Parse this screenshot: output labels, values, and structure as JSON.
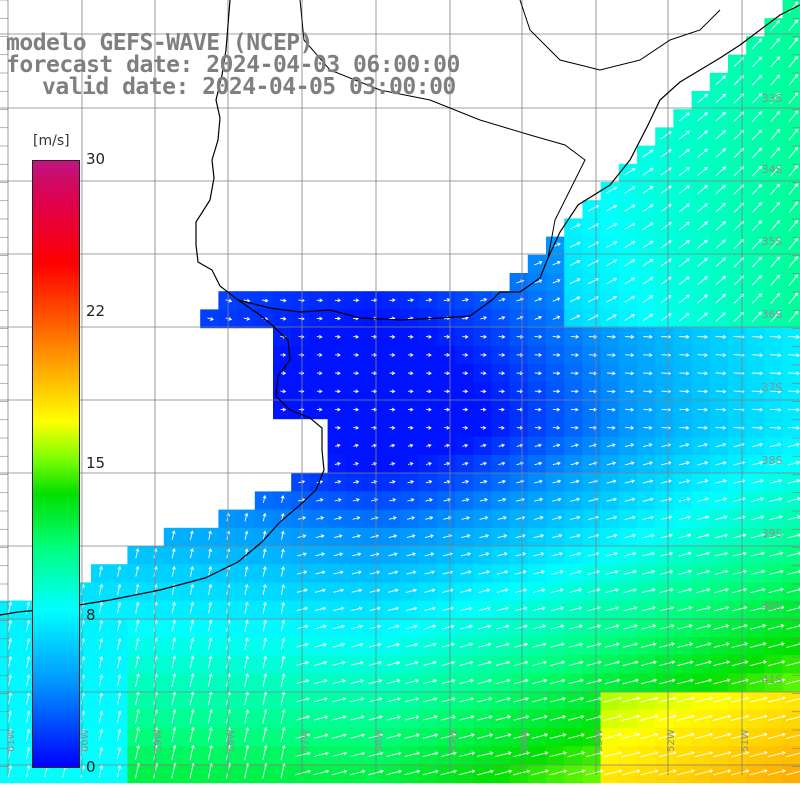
{
  "title": {
    "line1": "modelo GEFS-WAVE (NCEP)",
    "line2": "forecast date: 2024-04-03 06:00:00",
    "line3": "valid date: 2024-04-05 03:00:00"
  },
  "colorbar": {
    "unit": "[m/s]",
    "ticks": [
      "30",
      "22",
      "15",
      "8",
      "0"
    ],
    "range": [
      0,
      30
    ]
  },
  "lat_labels": [
    "33S",
    "34S",
    "35S",
    "36S",
    "37S",
    "38S",
    "39S",
    "40S",
    "41S"
  ],
  "lon_labels": [
    "61W",
    "60W",
    "59W",
    "58W",
    "57W",
    "56W",
    "55W",
    "54W",
    "53W",
    "52W",
    "51W"
  ],
  "colors": {
    "land": "#ffffff",
    "coastline": "#000000",
    "grid": "#808080",
    "arrows": "#ffffff"
  }
}
